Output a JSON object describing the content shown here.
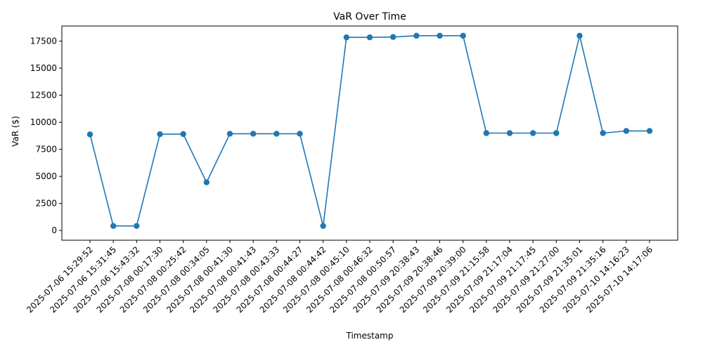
{
  "chart_data": {
    "type": "line",
    "title": "VaR Over Time",
    "xlabel": "Timestamp",
    "ylabel": "VaR ($)",
    "ylim": [
      -900,
      18900
    ],
    "yticks": [
      "0",
      "2500",
      "5000",
      "7500",
      "10000",
      "12500",
      "15000",
      "17500"
    ],
    "ytick_values": [
      0,
      2500,
      5000,
      7500,
      10000,
      12500,
      15000,
      17500
    ],
    "grid": false,
    "color": "#1f77b4",
    "marker": "circle",
    "series": [
      {
        "x": [
          "2025-07-06 15:29:52",
          "2025-07-06 15:31:45",
          "2025-07-06 15:43:32",
          "2025-07-08 00:17:30",
          "2025-07-08 00:25:42",
          "2025-07-08 00:34:05",
          "2025-07-08 00:41:30",
          "2025-07-08 00:41:43",
          "2025-07-08 00:43:33",
          "2025-07-08 00:44:27",
          "2025-07-08 00:44:42",
          "2025-07-08 00:45:10",
          "2025-07-08 00:46:32",
          "2025-07-08 00:50:57",
          "2025-07-09 20:38:43",
          "2025-07-09 20:38:46",
          "2025-07-09 20:39:00",
          "2025-07-09 21:15:58",
          "2025-07-09 21:17:04",
          "2025-07-09 21:17:45",
          "2025-07-09 21:27:00",
          "2025-07-09 21:35:01",
          "2025-07-09 21:35:16",
          "2025-07-10 14:16:23",
          "2025-07-10 14:17:06"
        ],
        "y": [
          8880,
          420,
          420,
          8900,
          8910,
          4450,
          8940,
          8940,
          8940,
          8940,
          420,
          17850,
          17850,
          17880,
          18000,
          18000,
          18000,
          9000,
          9000,
          9000,
          9000,
          18000,
          9000,
          9200,
          9200
        ]
      }
    ]
  }
}
